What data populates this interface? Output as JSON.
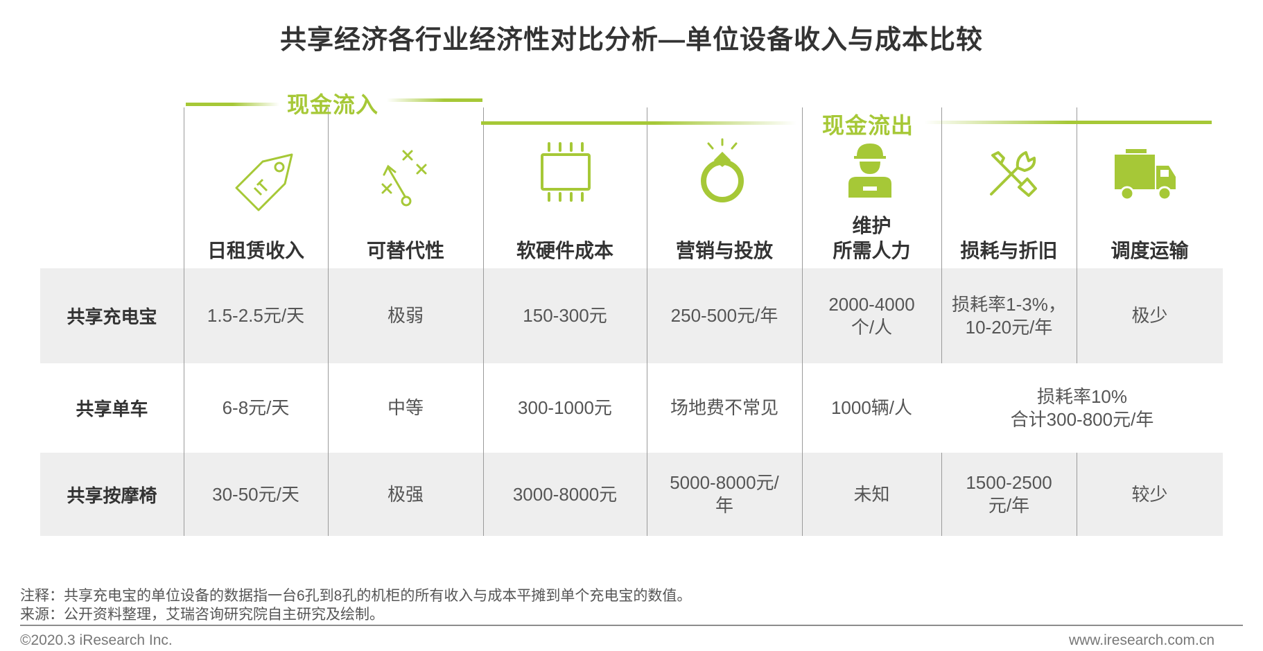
{
  "title": "共享经济各行业经济性对比分析—单位设备收入与成本比较",
  "group_labels": {
    "inflow": "现金流入",
    "outflow": "现金流出"
  },
  "accent_color": "#a6c837",
  "columns": [
    {
      "label": "日租赁收入",
      "icon": "price-tag-icon"
    },
    {
      "label": "可替代性",
      "icon": "strategy-play-icon"
    },
    {
      "label": "软硬件成本",
      "icon": "chip-icon"
    },
    {
      "label": "营销与投放",
      "icon": "diamond-ring-icon"
    },
    {
      "label": "维护\n所需人力",
      "icon": "worker-icon"
    },
    {
      "label": "损耗与折旧",
      "icon": "tools-icon"
    },
    {
      "label": "调度运输",
      "icon": "truck-icon"
    }
  ],
  "rows": [
    {
      "name": "共享充电宝",
      "cells": [
        "1.5-2.5元/天",
        "极弱",
        "150-300元",
        "250-500元/年",
        "2000-4000\n个/人",
        "损耗率1-3%，\n10-20元/年",
        "极少"
      ]
    },
    {
      "name": "共享单车",
      "cells": [
        "6-8元/天",
        "中等",
        "300-1000元",
        "场地费不常见",
        "1000辆/人"
      ],
      "merged": "损耗率10%\n合计300-800元/年"
    },
    {
      "name": "共享按摩椅",
      "cells": [
        "30-50元/天",
        "极强",
        "3000-8000元",
        "5000-8000元/\n年",
        "未知",
        "1500-2500\n元/年",
        "较少"
      ]
    }
  ],
  "notes": {
    "note": "注释：共享充电宝的单位设备的数据指一台6孔到8孔的机柜的所有收入与成本平摊到单个充电宝的数值。",
    "source": "来源：公开资料整理，艾瑞咨询研究院自主研究及绘制。"
  },
  "footer": {
    "copyright": "©2020.3 iResearch Inc.",
    "website": "www.iresearch.com.cn"
  }
}
